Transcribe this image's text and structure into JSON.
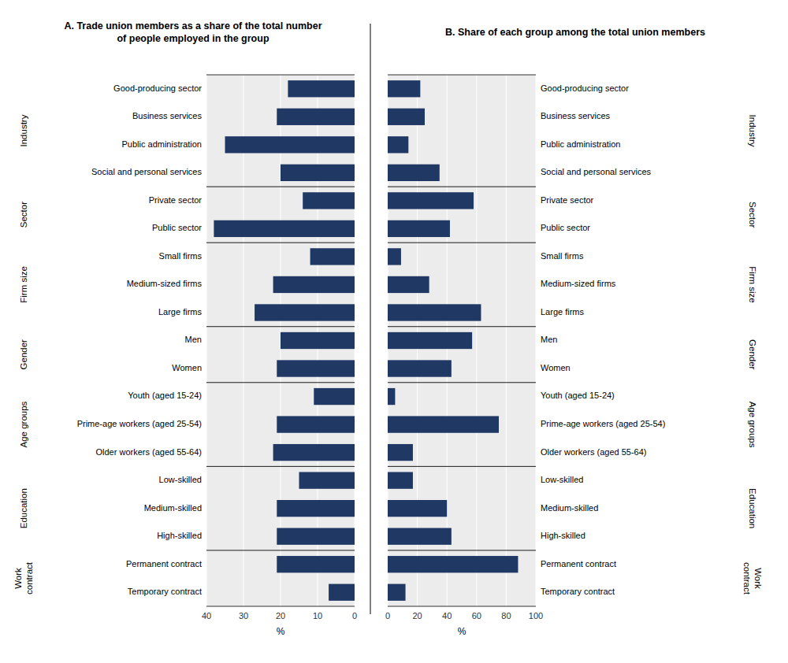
{
  "chart_data": [
    {
      "type": "bar",
      "orientation": "horizontal",
      "title": "A. Trade union members as a share of the total number\nof people employed in the group",
      "categories": [
        "Good-producing sector",
        "Business services",
        "Public administration",
        "Social and personal services",
        "Private sector",
        "Public sector",
        "Small firms",
        "Medium-sized firms",
        "Large firms",
        "Men",
        "Women",
        "Youth (aged 15-24)",
        "Prime-age workers (aged 25-54)",
        "Older workers (aged 55-64)",
        "Low-skilled",
        "Medium-skilled",
        "High-skilled",
        "Permanent contract",
        "Temporary contract"
      ],
      "values": [
        18,
        21,
        35,
        20,
        14,
        38,
        12,
        22,
        27,
        20,
        21,
        11,
        21,
        22,
        15,
        21,
        21,
        21,
        7
      ],
      "color": "#1f3864",
      "xlim": [
        40,
        0
      ],
      "xticks": [
        40,
        30,
        20,
        10,
        0
      ],
      "xlabel": "%",
      "grid": true,
      "groups": [
        {
          "label": "Industry",
          "start": 0,
          "end": 3
        },
        {
          "label": "Sector",
          "start": 4,
          "end": 5
        },
        {
          "label": "Firm size",
          "start": 6,
          "end": 8
        },
        {
          "label": "Gender",
          "start": 9,
          "end": 10
        },
        {
          "label": "Age groups",
          "start": 11,
          "end": 13
        },
        {
          "label": "Education",
          "start": 14,
          "end": 16
        },
        {
          "label": "Work\ncontract",
          "start": 17,
          "end": 18
        }
      ]
    },
    {
      "type": "bar",
      "orientation": "horizontal",
      "title": "B. Share of each group among the total union members",
      "categories": [
        "Good-producing sector",
        "Business services",
        "Public administration",
        "Social and personal services",
        "Private sector",
        "Public sector",
        "Small firms",
        "Medium-sized firms",
        "Large firms",
        "Men",
        "Women",
        "Youth (aged 15-24)",
        "Prime-age workers (aged 25-54)",
        "Older workers (aged 55-64)",
        "Low-skilled",
        "Medium-skilled",
        "High-skilled",
        "Permanent contract",
        "Temporary contract"
      ],
      "values": [
        22,
        25,
        14,
        35,
        58,
        42,
        9,
        28,
        63,
        57,
        43,
        5,
        75,
        17,
        17,
        40,
        43,
        88,
        12
      ],
      "color": "#1f3864",
      "xlim": [
        0,
        100
      ],
      "xticks": [
        0,
        20,
        40,
        60,
        80,
        100
      ],
      "xlabel": "%",
      "grid": true,
      "groups": [
        {
          "label": "Industry",
          "start": 0,
          "end": 3
        },
        {
          "label": "Sector",
          "start": 4,
          "end": 5
        },
        {
          "label": "Firm size",
          "start": 6,
          "end": 8
        },
        {
          "label": "Gender",
          "start": 9,
          "end": 10
        },
        {
          "label": "Age groups",
          "start": 11,
          "end": 13
        },
        {
          "label": "Education",
          "start": 14,
          "end": 16
        },
        {
          "label": "Work\ncontract",
          "start": 17,
          "end": 18
        }
      ]
    }
  ]
}
